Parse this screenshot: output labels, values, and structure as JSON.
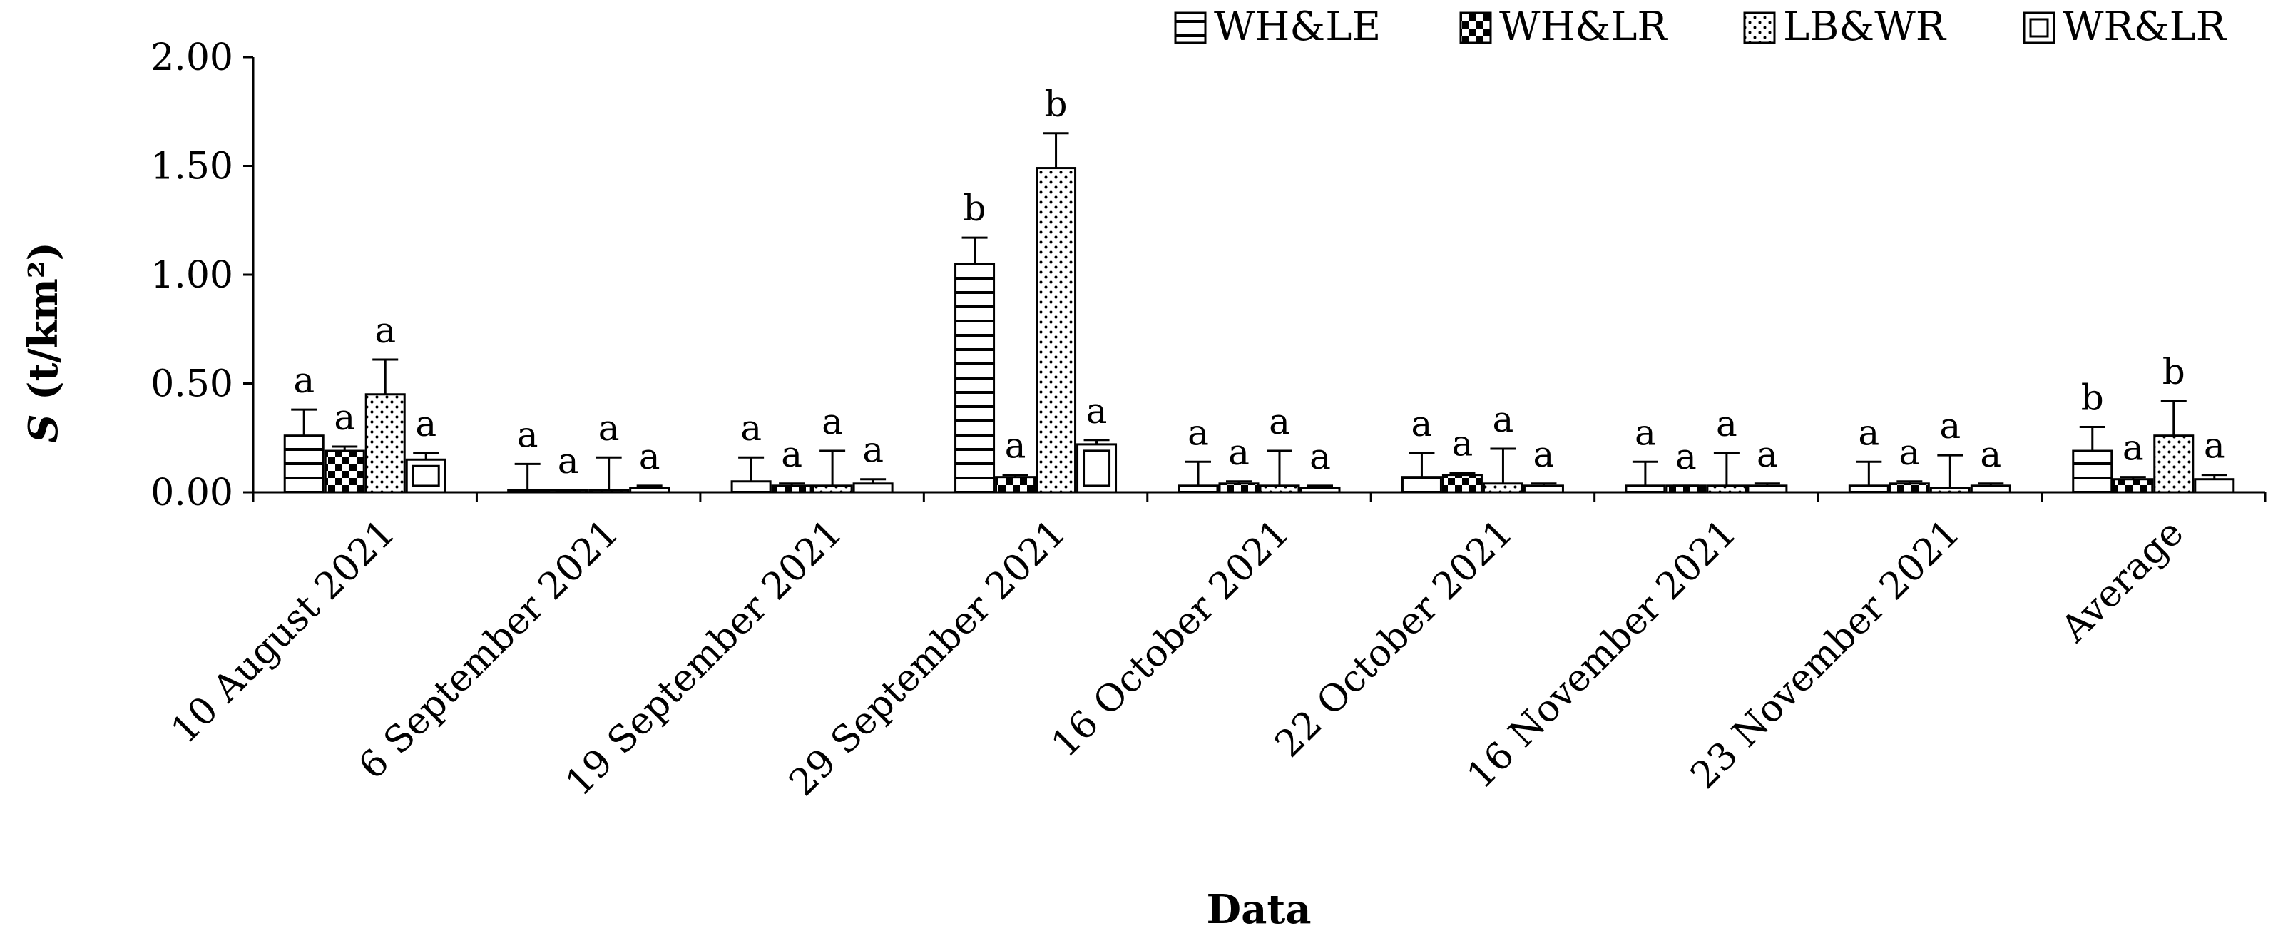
{
  "chart_data": {
    "type": "bar",
    "xlabel": "Data",
    "ylabel": "S (t/km²)",
    "ylabel_italic_part": "S",
    "ylabel_rest": " (t/km²)",
    "ylim": [
      0,
      2
    ],
    "yticks": [
      "0.00",
      "0.50",
      "1.00",
      "1.50",
      "2.00"
    ],
    "grid": false,
    "legend_position": "top-right",
    "categories": [
      "10 August 2021",
      "6 September 2021",
      "19 September 2021",
      "29 September 2021",
      "16 October 2021",
      "22 October 2021",
      "16 November 2021",
      "23 November 2021",
      "Average"
    ],
    "series": [
      {
        "name": "WH&LE",
        "pattern": "horizontal-lines",
        "values": [
          0.26,
          0.01,
          0.05,
          1.05,
          0.03,
          0.07,
          0.03,
          0.03,
          0.19
        ],
        "errors": [
          0.12,
          0.12,
          0.11,
          0.12,
          0.11,
          0.11,
          0.11,
          0.11,
          0.11
        ],
        "letters": [
          "a",
          "a",
          "a",
          "b",
          "a",
          "a",
          "a",
          "a",
          "b"
        ]
      },
      {
        "name": "WH&LR",
        "pattern": "checker",
        "values": [
          0.19,
          0.01,
          0.03,
          0.07,
          0.04,
          0.08,
          0.03,
          0.04,
          0.06
        ],
        "errors": [
          0.02,
          0.0,
          0.01,
          0.01,
          0.01,
          0.01,
          0.0,
          0.01,
          0.01
        ],
        "letters": [
          "a",
          "a",
          "a",
          "a",
          "a",
          "a",
          "a",
          "a",
          "a"
        ]
      },
      {
        "name": "LB&WR",
        "pattern": "dots",
        "values": [
          0.45,
          0.01,
          0.03,
          1.49,
          0.03,
          0.04,
          0.03,
          0.02,
          0.26
        ],
        "errors": [
          0.16,
          0.15,
          0.16,
          0.16,
          0.16,
          0.16,
          0.15,
          0.15,
          0.16
        ],
        "letters": [
          "a",
          "a",
          "a",
          "b",
          "a",
          "a",
          "a",
          "a",
          "b"
        ]
      },
      {
        "name": "WR&LR",
        "pattern": "box",
        "values": [
          0.15,
          0.02,
          0.04,
          0.22,
          0.02,
          0.03,
          0.03,
          0.03,
          0.06
        ],
        "errors": [
          0.03,
          0.01,
          0.02,
          0.02,
          0.01,
          0.01,
          0.01,
          0.01,
          0.02
        ],
        "letters": [
          "a",
          "a",
          "a",
          "a",
          "a",
          "a",
          "a",
          "a",
          "a"
        ]
      }
    ]
  }
}
